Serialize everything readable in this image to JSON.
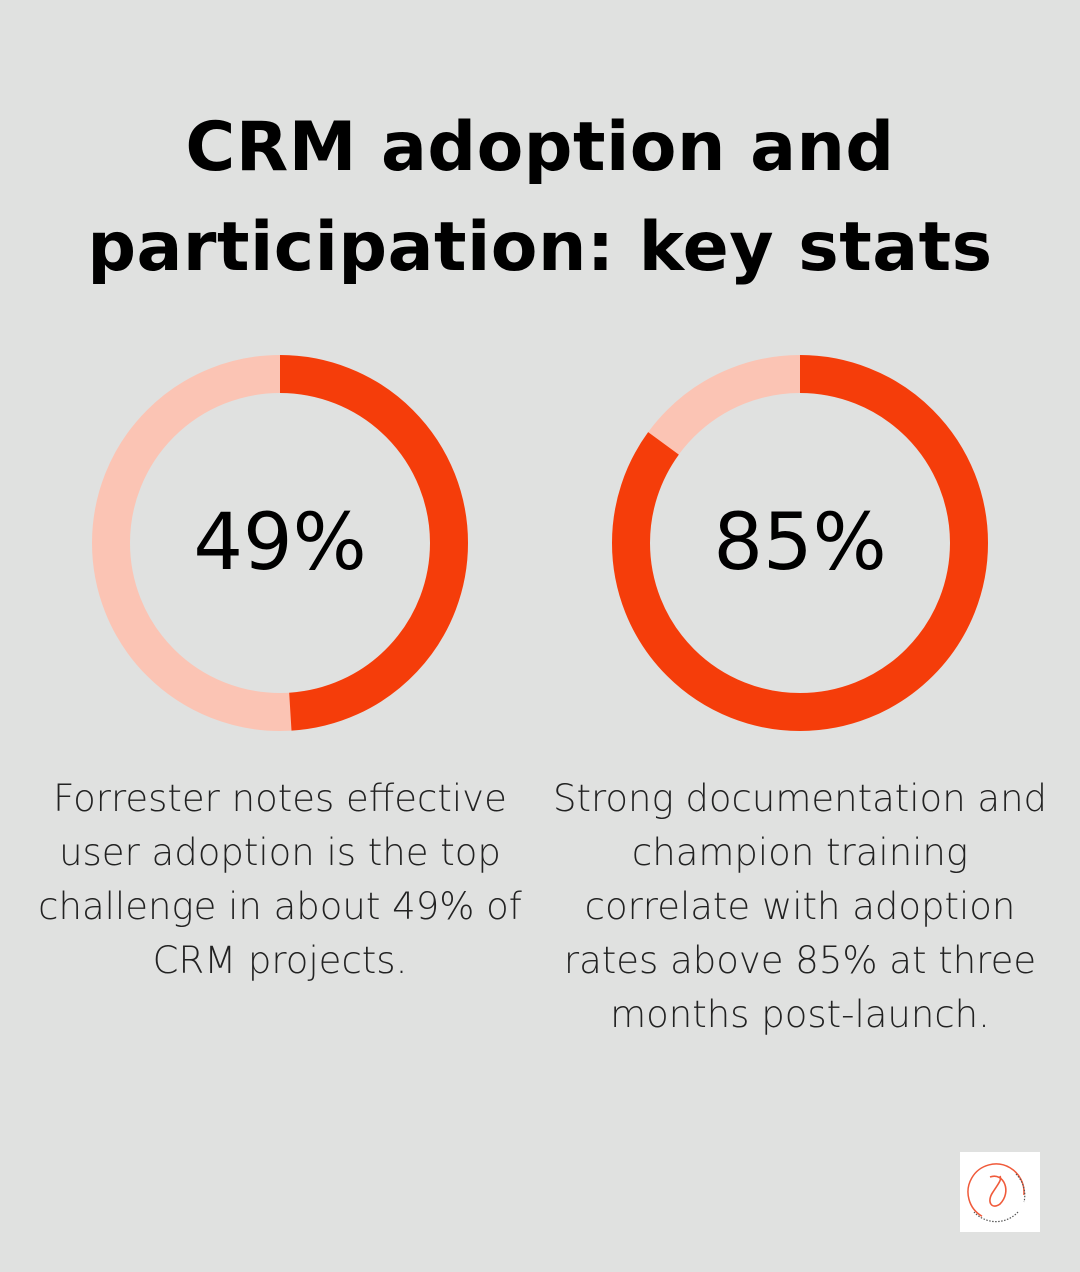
{
  "title": "CRM adoption and participation: key stats",
  "colors": {
    "filled": "#f53d0a",
    "remainder": "#fbc4b4",
    "background": "#e0e1e0"
  },
  "chart_data": [
    {
      "type": "pie",
      "variant": "donut",
      "value": 49,
      "max": 100,
      "label": "49%",
      "description": "Forrester notes effective user adoption is the top challenge in about 49% of CRM projects."
    },
    {
      "type": "pie",
      "variant": "donut",
      "value": 85,
      "max": 100,
      "label": "85%",
      "description": "Strong documentation and champion training correlate with adoption rates above 85% at three months post-launch."
    }
  ],
  "logo": {
    "text": "DYNAMIC • DIGITAL SOLUTIONS"
  }
}
